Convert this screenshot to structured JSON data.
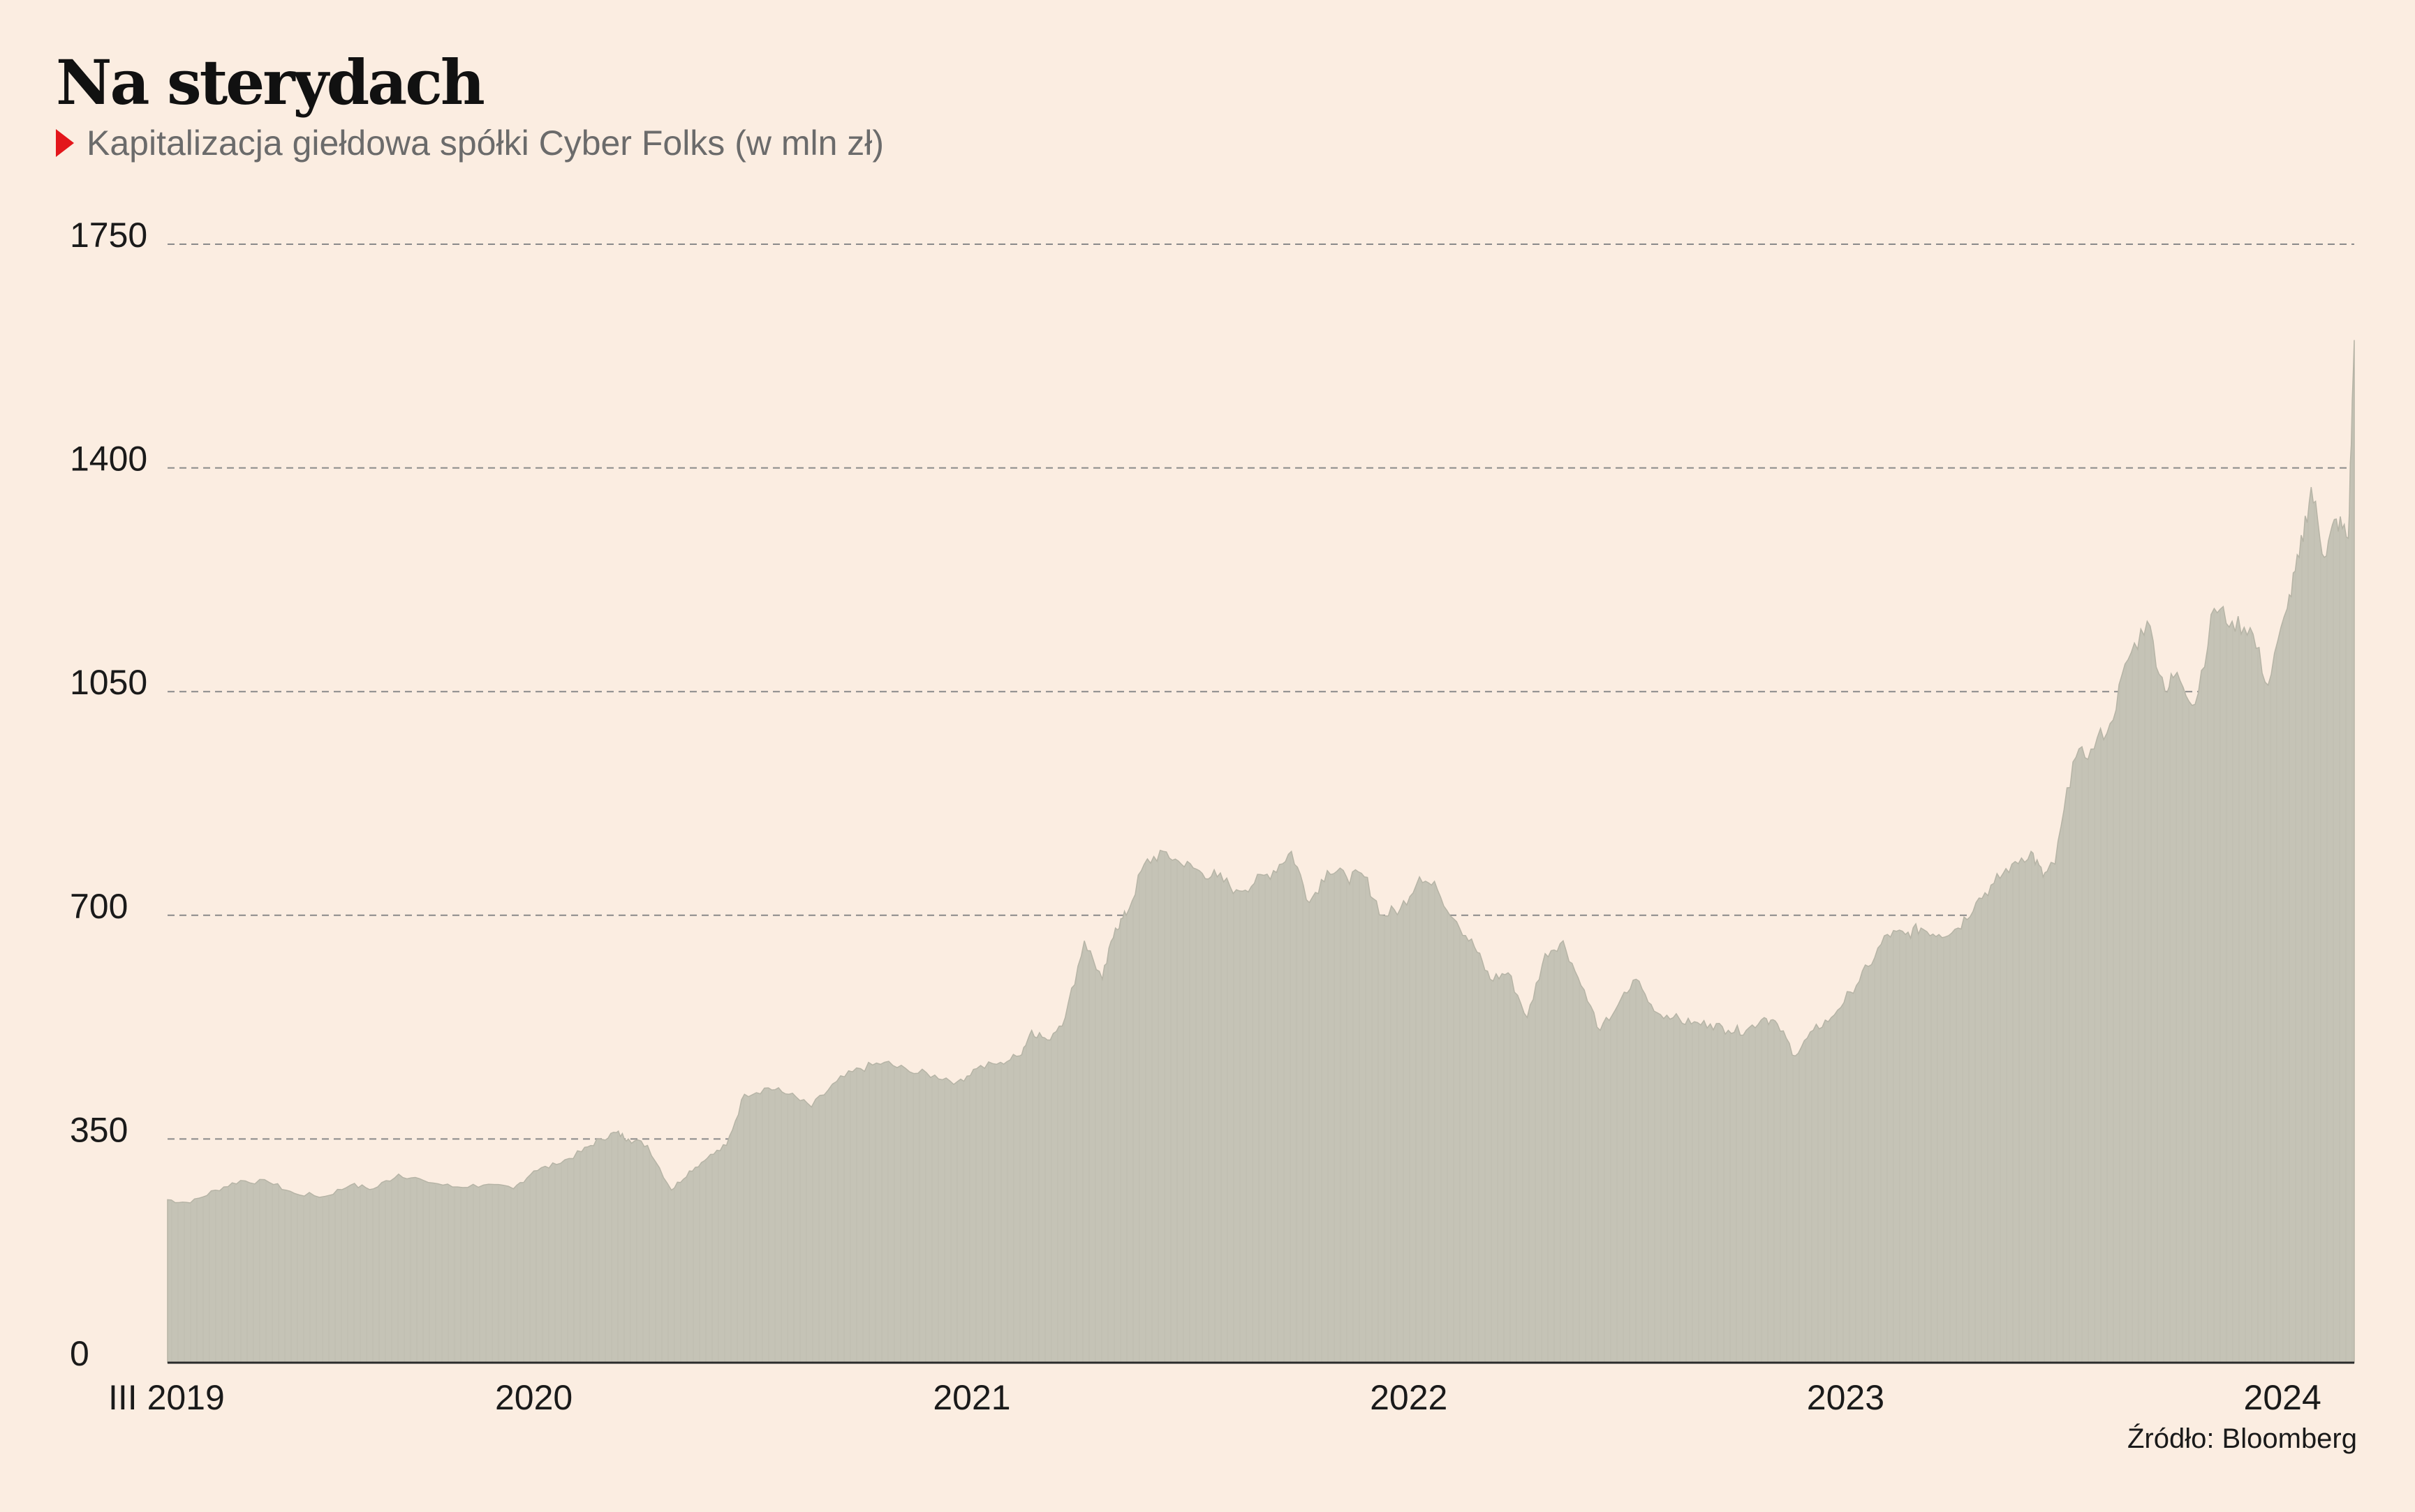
{
  "chart_data": {
    "type": "area",
    "title": "Na sterydach",
    "subtitle": "Kapitalizacja giełdowa spółki Cyber Folks (w mln zł)",
    "source": "Źródło: Bloomberg",
    "ylim": [
      0,
      1750
    ],
    "yticks": [
      "0",
      "350",
      "700",
      "1050",
      "1400",
      "1750"
    ],
    "x_tick_labels": [
      {
        "date": "2019-03-01",
        "label": "III 2019"
      },
      {
        "date": "2020-01-01",
        "label": "2020"
      },
      {
        "date": "2021-01-01",
        "label": "2021"
      },
      {
        "date": "2022-01-01",
        "label": "2022"
      },
      {
        "date": "2023-01-01",
        "label": "2023"
      },
      {
        "date": "2024-01-01",
        "label": "2024"
      }
    ],
    "xlim": [
      "2019-03-01",
      "2024-03-01"
    ],
    "grid": "horizontal-dashed",
    "color": "#c5c3b6",
    "series": [
      {
        "name": "",
        "x": [
          "2019-03-01",
          "2019-03-20",
          "2019-04-10",
          "2019-05-01",
          "2019-05-25",
          "2019-06-15",
          "2019-07-10",
          "2019-08-01",
          "2019-08-20",
          "2019-09-10",
          "2019-10-01",
          "2019-10-25",
          "2019-11-20",
          "2019-12-15",
          "2020-01-01",
          "2020-01-20",
          "2020-02-10",
          "2020-02-25",
          "2020-03-10",
          "2020-03-20",
          "2020-04-05",
          "2020-04-25",
          "2020-05-10",
          "2020-05-25",
          "2020-06-10",
          "2020-06-25",
          "2020-07-15",
          "2020-08-01",
          "2020-08-20",
          "2020-09-10",
          "2020-09-30",
          "2020-10-20",
          "2020-11-10",
          "2020-12-01",
          "2020-12-20",
          "2021-01-05",
          "2021-01-25",
          "2021-02-10",
          "2021-02-20",
          "2021-03-05",
          "2021-03-20",
          "2021-04-05",
          "2021-04-20",
          "2021-05-01",
          "2021-05-10",
          "2021-05-25",
          "2021-06-10",
          "2021-06-25",
          "2021-07-10",
          "2021-07-25",
          "2021-08-10",
          "2021-08-25",
          "2021-09-10",
          "2021-09-25",
          "2021-10-10",
          "2021-10-25",
          "2021-11-10",
          "2021-11-25",
          "2021-12-10",
          "2021-12-25",
          "2022-01-10",
          "2022-01-25",
          "2022-02-10",
          "2022-02-25",
          "2022-03-10",
          "2022-03-25",
          "2022-04-10",
          "2022-04-25",
          "2022-05-10",
          "2022-05-25",
          "2022-06-10",
          "2022-06-25",
          "2022-07-10",
          "2022-07-25",
          "2022-08-10",
          "2022-08-25",
          "2022-09-10",
          "2022-09-25",
          "2022-10-10",
          "2022-10-25",
          "2022-11-05",
          "2022-11-20",
          "2022-12-05",
          "2022-12-20",
          "2023-01-05",
          "2023-01-20",
          "2023-02-05",
          "2023-02-20",
          "2023-03-05",
          "2023-03-20",
          "2023-04-05",
          "2023-04-20",
          "2023-05-05",
          "2023-05-20",
          "2023-06-05",
          "2023-06-15",
          "2023-06-25",
          "2023-07-10",
          "2023-07-25",
          "2023-08-10",
          "2023-08-25",
          "2023-09-10",
          "2023-09-25",
          "2023-10-05",
          "2023-10-20",
          "2023-11-05",
          "2023-11-20",
          "2023-12-05",
          "2023-12-20",
          "2024-01-05",
          "2024-01-15",
          "2024-01-25",
          "2024-02-05",
          "2024-02-15",
          "2024-02-25",
          "2024-03-01"
        ],
        "values": [
          255,
          250,
          270,
          285,
          282,
          265,
          260,
          278,
          272,
          295,
          285,
          275,
          278,
          272,
          300,
          310,
          330,
          350,
          360,
          350,
          340,
          270,
          300,
          320,
          340,
          420,
          430,
          420,
          400,
          440,
          460,
          470,
          455,
          450,
          440,
          460,
          470,
          480,
          520,
          505,
          540,
          660,
          600,
          680,
          700,
          780,
          800,
          780,
          770,
          760,
          740,
          750,
          770,
          800,
          720,
          770,
          760,
          760,
          700,
          710,
          760,
          740,
          690,
          650,
          600,
          610,
          540,
          640,
          660,
          590,
          520,
          560,
          600,
          550,
          540,
          530,
          530,
          520,
          520,
          540,
          530,
          480,
          520,
          540,
          580,
          620,
          670,
          670,
          680,
          670,
          680,
          720,
          750,
          780,
          800,
          760,
          780,
          940,
          960,
          1000,
          1100,
          1160,
          1050,
          1080,
          1030,
          1180,
          1160,
          1150,
          1060,
          1180,
          1260,
          1370,
          1260,
          1320,
          1290,
          1600
        ]
      }
    ]
  }
}
